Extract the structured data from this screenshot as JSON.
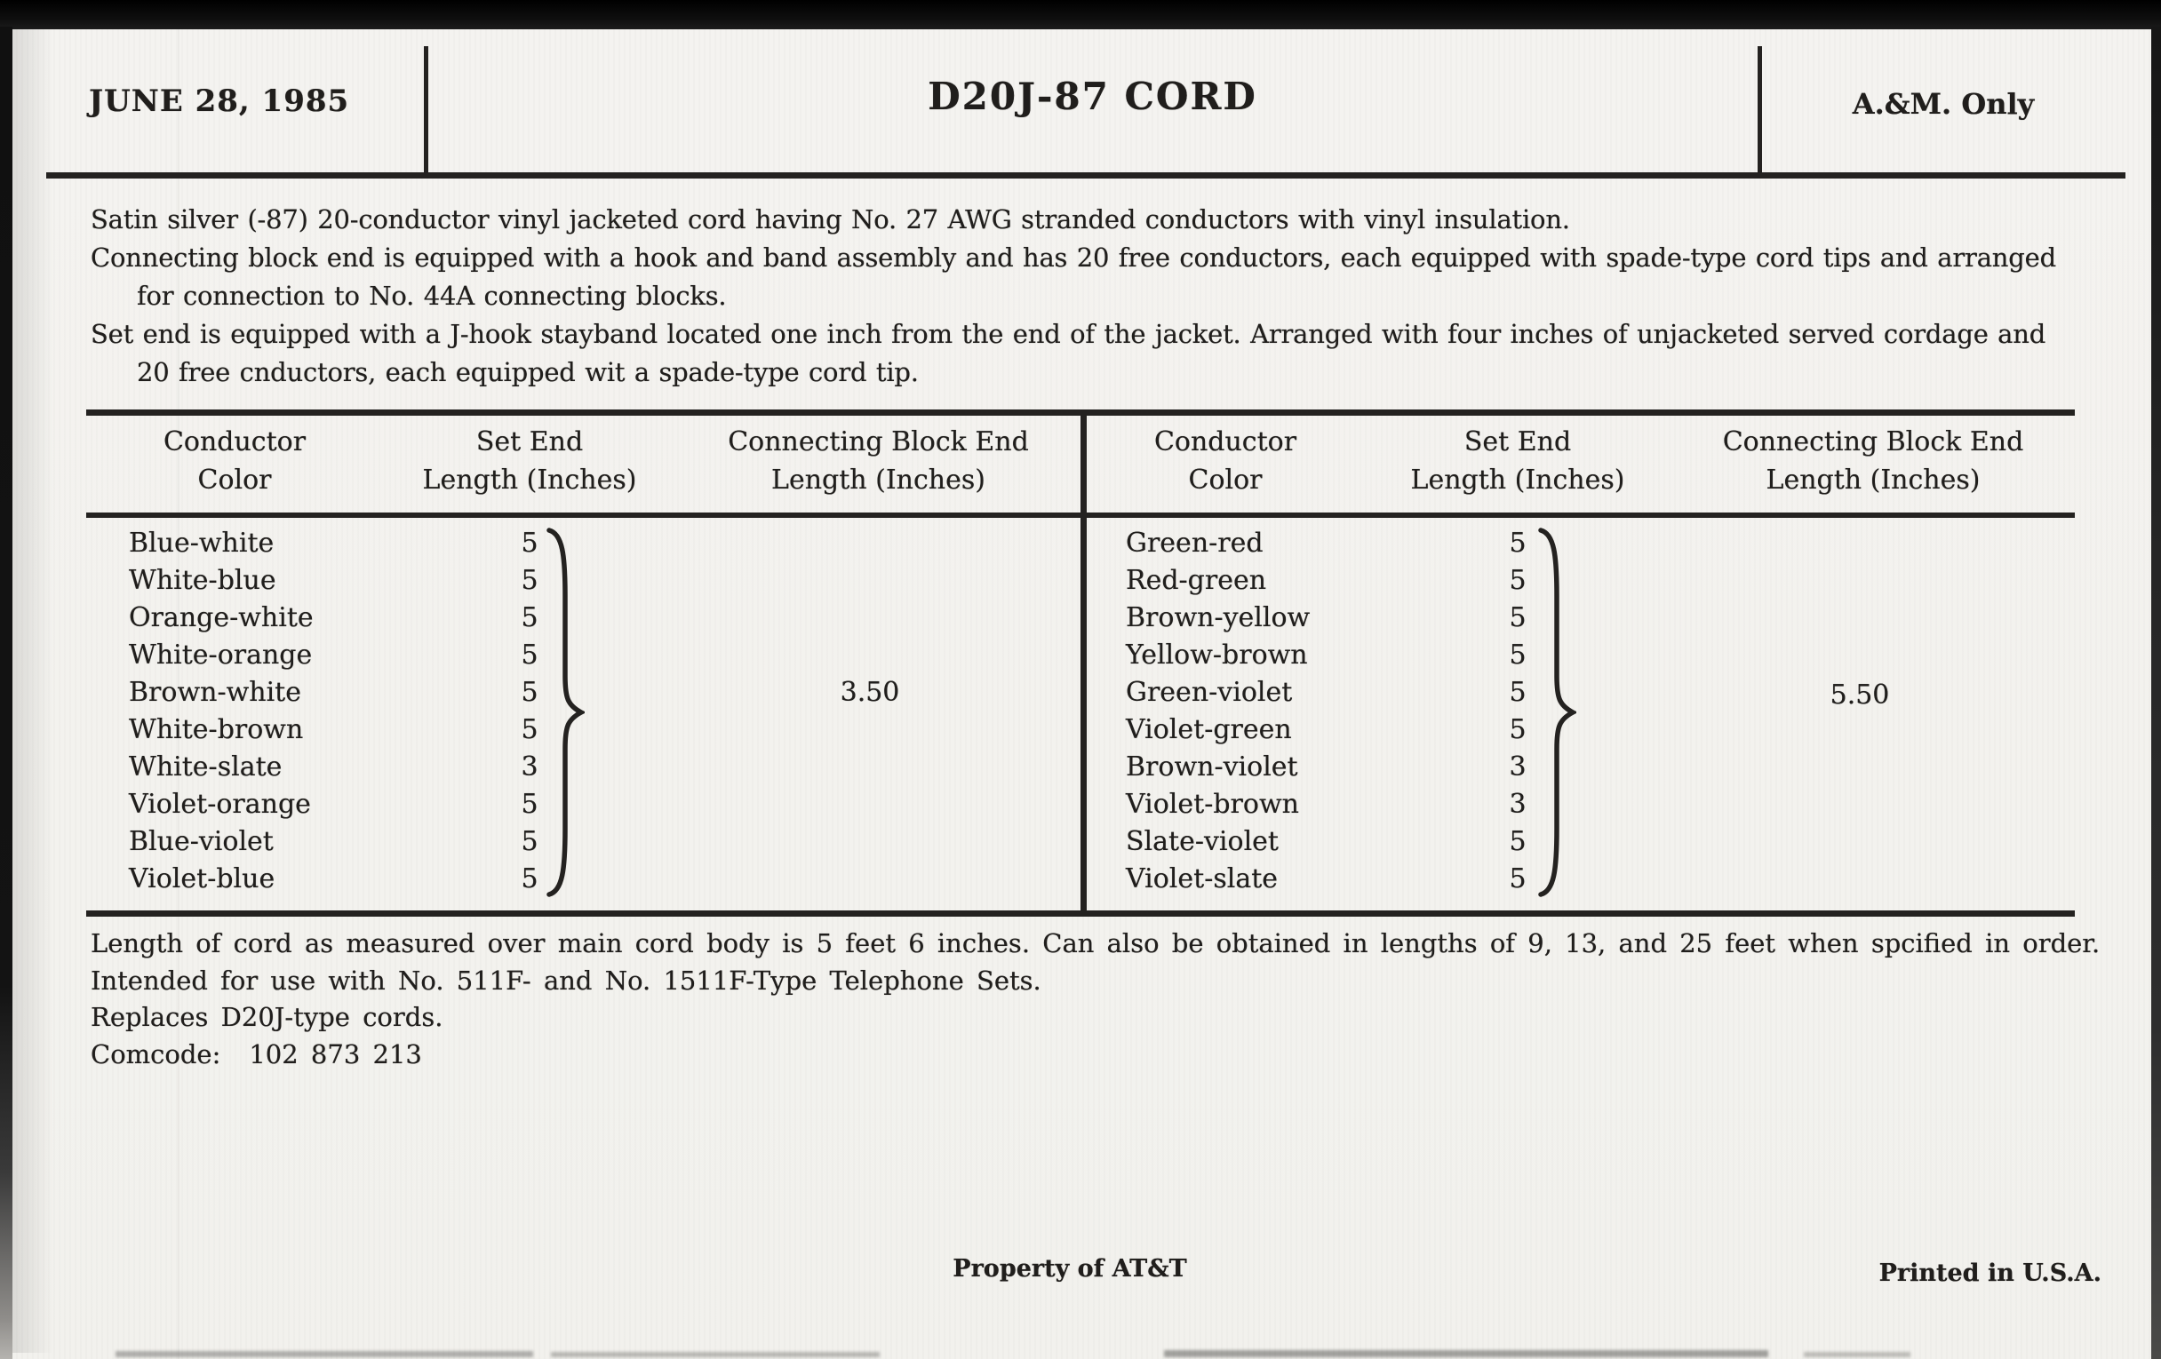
{
  "header": {
    "date": "JUNE 28, 1985",
    "title": "D20J-87 CORD",
    "classification": "A.&M. Only"
  },
  "description": {
    "lines": [
      {
        "text": "Satin silver (-87) 20-conductor vinyl jacketed cord having No. 27 AWG stranded conductors with vinyl insulation.",
        "indent": false
      },
      {
        "text": "Connecting block end is equipped with a hook and band assembly and has 20 free conductors, each equipped with spade-type cord tips and arranged",
        "indent": false
      },
      {
        "text": "for connection to No. 44A connecting blocks.",
        "indent": true
      },
      {
        "text": "Set end is equipped with a J-hook stayband located one inch from the end of the jacket. Arranged with four inches of unjacketed served cordage and",
        "indent": false
      },
      {
        "text": "20 free cnductors, each equipped wit a spade-type cord tip.",
        "indent": true
      }
    ]
  },
  "table": {
    "headers": [
      [
        "Conductor",
        "Color"
      ],
      [
        "Set End",
        "Length (Inches)"
      ],
      [
        "Connecting Block End",
        "Length (Inches)"
      ]
    ],
    "left": {
      "rows": [
        {
          "color": "Blue-white",
          "set_end": "5"
        },
        {
          "color": "White-blue",
          "set_end": "5"
        },
        {
          "color": "Orange-white",
          "set_end": "5"
        },
        {
          "color": "White-orange",
          "set_end": "5"
        },
        {
          "color": "Brown-white",
          "set_end": "5"
        },
        {
          "color": "White-brown",
          "set_end": "5"
        },
        {
          "color": "White-slate",
          "set_end": "3"
        },
        {
          "color": "Violet-orange",
          "set_end": "5"
        },
        {
          "color": "Blue-violet",
          "set_end": "5"
        },
        {
          "color": "Violet-blue",
          "set_end": "5"
        }
      ],
      "connecting_block_end": "3.50"
    },
    "right": {
      "rows": [
        {
          "color": "Green-red",
          "set_end": "5"
        },
        {
          "color": "Red-green",
          "set_end": "5"
        },
        {
          "color": "Brown-yellow",
          "set_end": "5"
        },
        {
          "color": "Yellow-brown",
          "set_end": "5"
        },
        {
          "color": "Green-violet",
          "set_end": "5"
        },
        {
          "color": "Violet-green",
          "set_end": "5"
        },
        {
          "color": "Brown-violet",
          "set_end": "3"
        },
        {
          "color": "Violet-brown",
          "set_end": "3"
        },
        {
          "color": "Slate-violet",
          "set_end": "5"
        },
        {
          "color": "Violet-slate",
          "set_end": "5"
        }
      ],
      "connecting_block_end": "5.50"
    }
  },
  "notes": {
    "lines": [
      "Length of cord as measured over main cord body is 5 feet 6 inches. Can also be obtained in lengths of 9, 13, and 25 feet when spcified in order.",
      "Intended for use with No. 511F- and No. 1511F-Type Telephone Sets.",
      "Replaces D20J-type cords."
    ],
    "comcode_label": "Comcode:",
    "comcode_value": "102 873 213"
  },
  "footer": {
    "center": "Property of AT&T",
    "right": "Printed in U.S.A."
  },
  "colors": {
    "paper": "#f3f2ef",
    "ink": "#201e1c",
    "rule": "#242220",
    "scan_edge": "#101010"
  }
}
